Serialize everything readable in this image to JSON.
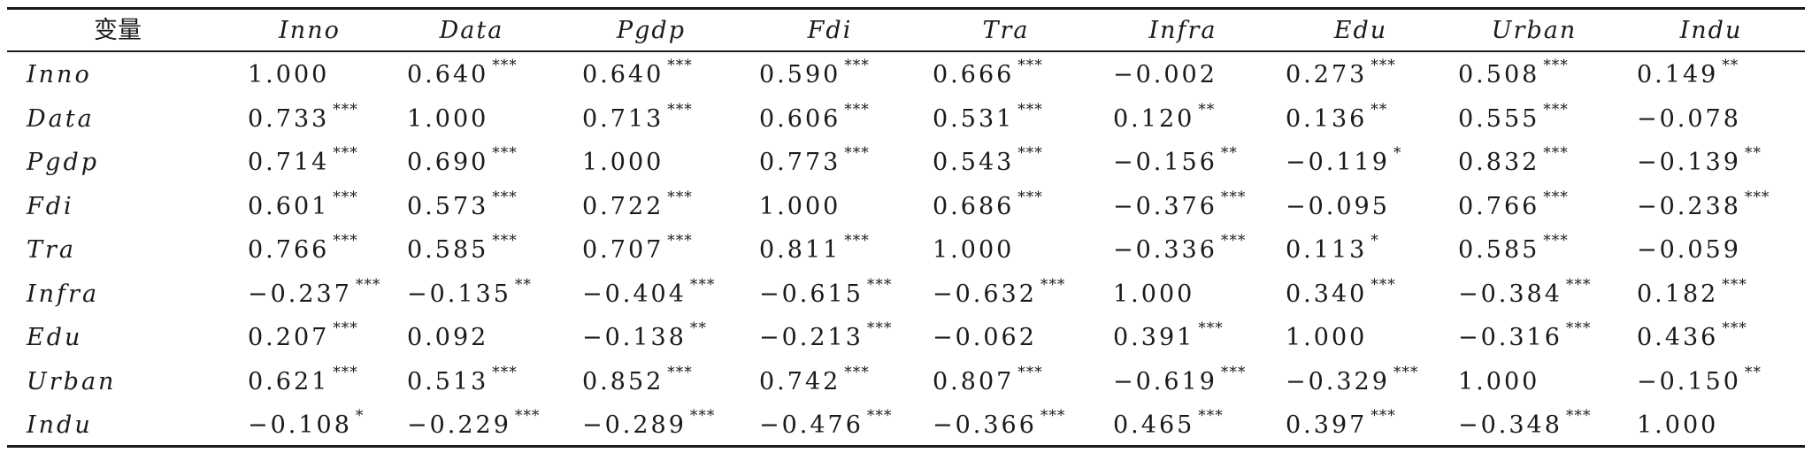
{
  "table": {
    "headers": [
      "变量",
      "Inno",
      "Data",
      "Pgdp",
      "Fdi",
      "Tra",
      "Infra",
      "Edu",
      "Urban",
      "Indu"
    ],
    "rows": [
      {
        "label": "Inno",
        "cells": [
          {
            "v": "1.000",
            "s": ""
          },
          {
            "v": "0.640",
            "s": "***"
          },
          {
            "v": "0.640",
            "s": "***"
          },
          {
            "v": "0.590",
            "s": "***"
          },
          {
            "v": "0.666",
            "s": "***"
          },
          {
            "v": "−0.002",
            "s": ""
          },
          {
            "v": "0.273",
            "s": "***"
          },
          {
            "v": "0.508",
            "s": "***"
          },
          {
            "v": "0.149",
            "s": "**"
          }
        ]
      },
      {
        "label": "Data",
        "cells": [
          {
            "v": "0.733",
            "s": "***"
          },
          {
            "v": "1.000",
            "s": ""
          },
          {
            "v": "0.713",
            "s": "***"
          },
          {
            "v": "0.606",
            "s": "***"
          },
          {
            "v": "0.531",
            "s": "***"
          },
          {
            "v": "0.120",
            "s": "**"
          },
          {
            "v": "0.136",
            "s": "**"
          },
          {
            "v": "0.555",
            "s": "***"
          },
          {
            "v": "−0.078",
            "s": ""
          }
        ]
      },
      {
        "label": "Pgdp",
        "cells": [
          {
            "v": "0.714",
            "s": "***"
          },
          {
            "v": "0.690",
            "s": "***"
          },
          {
            "v": "1.000",
            "s": ""
          },
          {
            "v": "0.773",
            "s": "***"
          },
          {
            "v": "0.543",
            "s": "***"
          },
          {
            "v": "−0.156",
            "s": "**"
          },
          {
            "v": "−0.119",
            "s": "*"
          },
          {
            "v": "0.832",
            "s": "***"
          },
          {
            "v": "−0.139",
            "s": "**"
          }
        ]
      },
      {
        "label": "Fdi",
        "cells": [
          {
            "v": "0.601",
            "s": "***"
          },
          {
            "v": "0.573",
            "s": "***"
          },
          {
            "v": "0.722",
            "s": "***"
          },
          {
            "v": "1.000",
            "s": ""
          },
          {
            "v": "0.686",
            "s": "***"
          },
          {
            "v": "−0.376",
            "s": "***"
          },
          {
            "v": "−0.095",
            "s": ""
          },
          {
            "v": "0.766",
            "s": "***"
          },
          {
            "v": "−0.238",
            "s": "***"
          }
        ]
      },
      {
        "label": "Tra",
        "cells": [
          {
            "v": "0.766",
            "s": "***"
          },
          {
            "v": "0.585",
            "s": "***"
          },
          {
            "v": "0.707",
            "s": "***"
          },
          {
            "v": "0.811",
            "s": "***"
          },
          {
            "v": "1.000",
            "s": ""
          },
          {
            "v": "−0.336",
            "s": "***"
          },
          {
            "v": "0.113",
            "s": "*"
          },
          {
            "v": "0.585",
            "s": "***"
          },
          {
            "v": "−0.059",
            "s": ""
          }
        ]
      },
      {
        "label": "Infra",
        "cells": [
          {
            "v": "−0.237",
            "s": "***"
          },
          {
            "v": "−0.135",
            "s": "**"
          },
          {
            "v": "−0.404",
            "s": "***"
          },
          {
            "v": "−0.615",
            "s": "***"
          },
          {
            "v": "−0.632",
            "s": "***"
          },
          {
            "v": "1.000",
            "s": ""
          },
          {
            "v": "0.340",
            "s": "***"
          },
          {
            "v": "−0.384",
            "s": "***"
          },
          {
            "v": "0.182",
            "s": "***"
          }
        ]
      },
      {
        "label": "Edu",
        "cells": [
          {
            "v": "0.207",
            "s": "***"
          },
          {
            "v": "0.092",
            "s": ""
          },
          {
            "v": "−0.138",
            "s": "**"
          },
          {
            "v": "−0.213",
            "s": "***"
          },
          {
            "v": "−0.062",
            "s": ""
          },
          {
            "v": "0.391",
            "s": "***"
          },
          {
            "v": "1.000",
            "s": ""
          },
          {
            "v": "−0.316",
            "s": "***"
          },
          {
            "v": "0.436",
            "s": "***"
          }
        ]
      },
      {
        "label": "Urban",
        "cells": [
          {
            "v": "0.621",
            "s": "***"
          },
          {
            "v": "0.513",
            "s": "***"
          },
          {
            "v": "0.852",
            "s": "***"
          },
          {
            "v": "0.742",
            "s": "***"
          },
          {
            "v": "0.807",
            "s": "***"
          },
          {
            "v": "−0.619",
            "s": "***"
          },
          {
            "v": "−0.329",
            "s": "***"
          },
          {
            "v": "1.000",
            "s": ""
          },
          {
            "v": "−0.150",
            "s": "**"
          }
        ]
      },
      {
        "label": "Indu",
        "cells": [
          {
            "v": "−0.108",
            "s": "*"
          },
          {
            "v": "−0.229",
            "s": "***"
          },
          {
            "v": "−0.289",
            "s": "***"
          },
          {
            "v": "−0.476",
            "s": "***"
          },
          {
            "v": "−0.366",
            "s": "***"
          },
          {
            "v": "0.465",
            "s": "***"
          },
          {
            "v": "0.397",
            "s": "***"
          },
          {
            "v": "−0.348",
            "s": "***"
          },
          {
            "v": "1.000",
            "s": ""
          }
        ]
      }
    ]
  }
}
